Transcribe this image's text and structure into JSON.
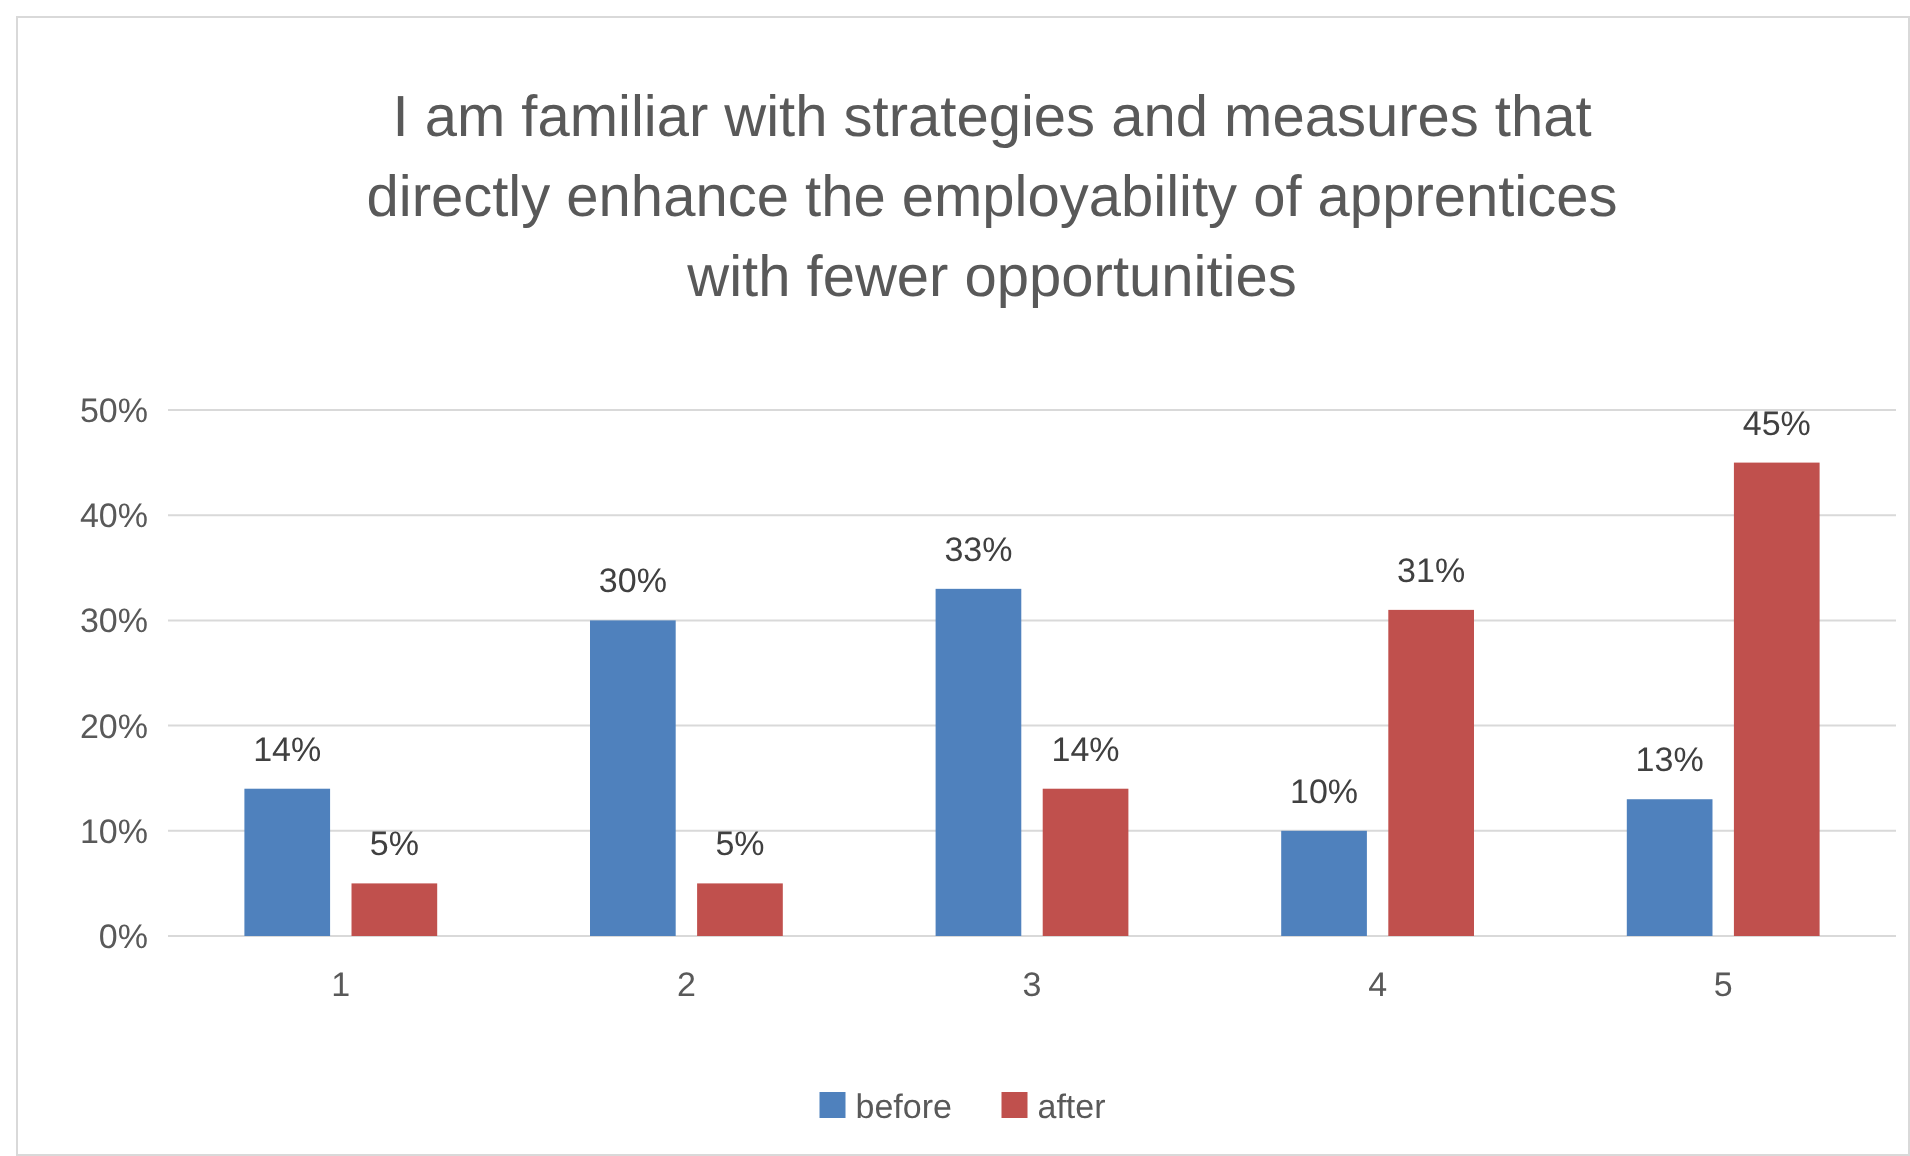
{
  "chart_data": {
    "type": "bar",
    "title": "I am familiar with strategies and measures that directly enhance the employability of apprentices with fewer opportunities",
    "categories": [
      "1",
      "2",
      "3",
      "4",
      "5"
    ],
    "series": [
      {
        "name": "before",
        "color": "#4f81bd",
        "values": [
          14,
          30,
          33,
          10,
          13
        ],
        "value_labels": [
          "14%",
          "30%",
          "33%",
          "10%",
          "13%"
        ]
      },
      {
        "name": "after",
        "color": "#c0504d",
        "values": [
          5,
          5,
          14,
          31,
          45
        ],
        "value_labels": [
          "5%",
          "5%",
          "14%",
          "31%",
          "45%"
        ]
      }
    ],
    "ylim": [
      0,
      50
    ],
    "yticks": [
      {
        "value": 0,
        "label": "0%"
      },
      {
        "value": 10,
        "label": "10%"
      },
      {
        "value": 20,
        "label": "20%"
      },
      {
        "value": 30,
        "label": "30%"
      },
      {
        "value": 40,
        "label": "40%"
      },
      {
        "value": 50,
        "label": "50%"
      }
    ],
    "grid": "y",
    "legend": "bottom"
  }
}
